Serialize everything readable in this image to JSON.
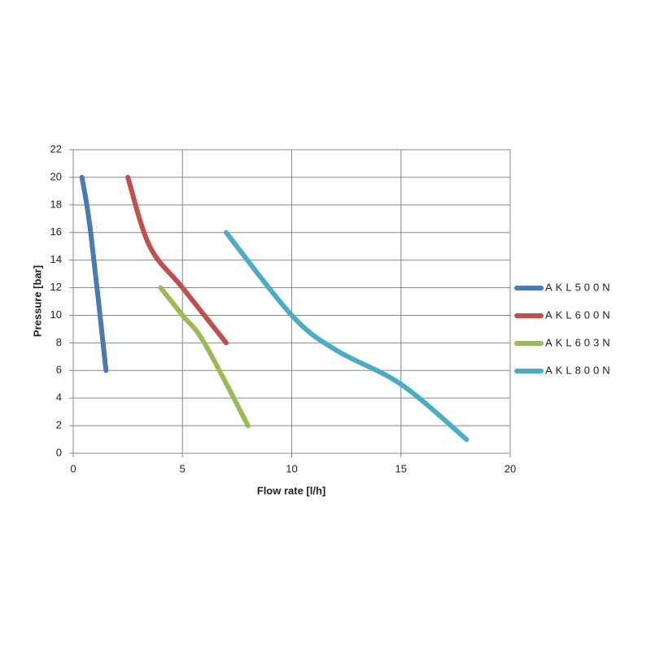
{
  "chart_data": {
    "type": "line",
    "x_label": "Flow rate [l/h]",
    "y_label": "Pressure [bar]",
    "xlim": [
      0,
      20
    ],
    "xticks": [
      0,
      5,
      10,
      15,
      20
    ],
    "ylim": [
      0,
      22
    ],
    "yticks": [
      0,
      2,
      4,
      6,
      8,
      10,
      12,
      14,
      16,
      18,
      20,
      22
    ],
    "grid": true,
    "legend": "right",
    "series": [
      {
        "name": "AKL500N",
        "color": "#4a7ab5",
        "x": [
          0.4,
          0.8,
          1.5
        ],
        "values": [
          20,
          16,
          6
        ]
      },
      {
        "name": "AKL600N",
        "color": "#c0504d",
        "x": [
          2.5,
          3.5,
          5,
          7
        ],
        "values": [
          20,
          15,
          12,
          8
        ]
      },
      {
        "name": "AKL603N",
        "color": "#9bbb59",
        "x": [
          4,
          5,
          6,
          8
        ],
        "values": [
          12,
          10,
          8,
          2
        ]
      },
      {
        "name": "AKL800N",
        "color": "#4bacc6",
        "x": [
          7,
          10,
          12,
          15,
          18
        ],
        "values": [
          16,
          10,
          7.5,
          5,
          1
        ]
      }
    ]
  }
}
